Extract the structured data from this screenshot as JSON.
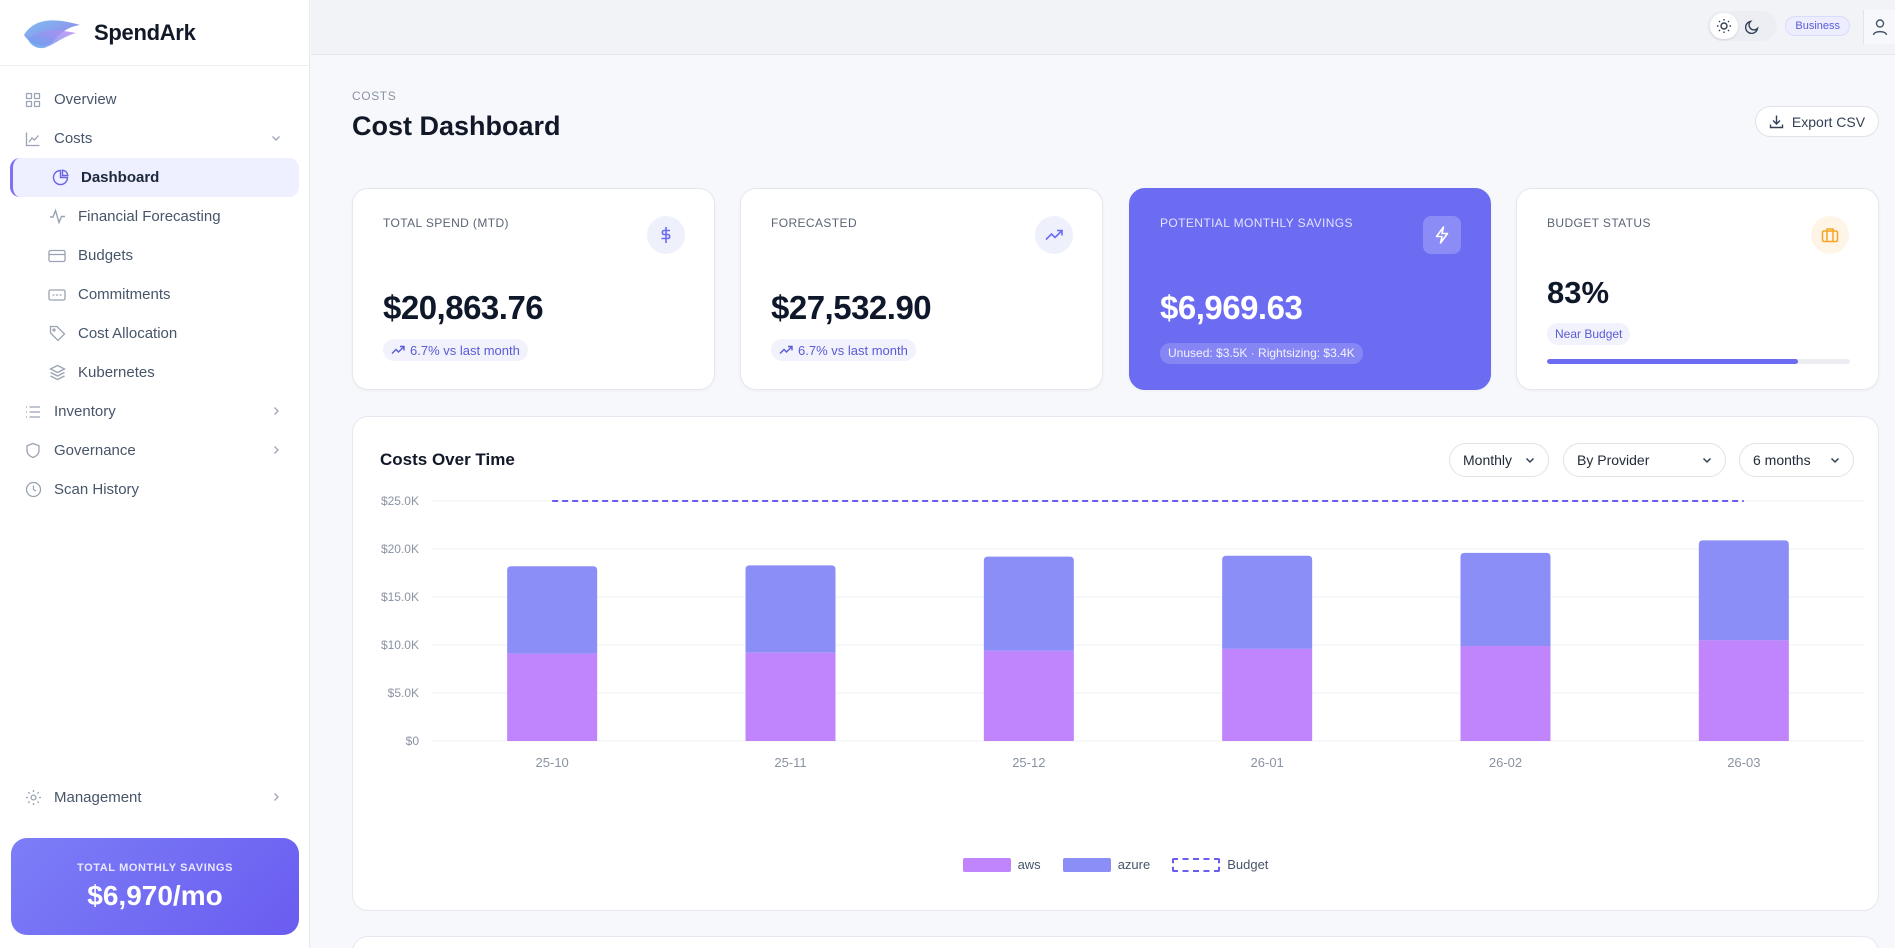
{
  "app": {
    "name": "SpendArk"
  },
  "sidebar": {
    "items": [
      {
        "label": "Overview",
        "icon": "grid-icon"
      },
      {
        "label": "Costs",
        "icon": "chart-line-icon",
        "expanded": true
      },
      {
        "label": "Inventory",
        "icon": "list-icon"
      },
      {
        "label": "Governance",
        "icon": "shield-icon"
      },
      {
        "label": "Scan History",
        "icon": "clock-icon"
      }
    ],
    "sub_items": [
      {
        "label": "Dashboard",
        "icon": "pie-chart-icon",
        "active": true
      },
      {
        "label": "Financial Forecasting",
        "icon": "activity-icon"
      },
      {
        "label": "Budgets",
        "icon": "credit-card-icon"
      },
      {
        "label": "Commitments",
        "icon": "ticket-icon"
      },
      {
        "label": "Cost Allocation",
        "icon": "tag-icon"
      },
      {
        "label": "Kubernetes",
        "icon": "layers-icon"
      }
    ],
    "management": {
      "label": "Management",
      "icon": "gear-icon"
    },
    "savings": {
      "label": "TOTAL MONTHLY SAVINGS",
      "value": "$6,970/mo"
    }
  },
  "topbar": {
    "plan": "Business"
  },
  "header": {
    "breadcrumb": "COSTS",
    "title": "Cost Dashboard",
    "export_label": "Export CSV"
  },
  "kpis": {
    "total_spend": {
      "label": "TOTAL SPEND (MTD)",
      "value": "$20,863.76",
      "trend": "6.7% vs last month",
      "icon": "dollar-icon"
    },
    "forecasted": {
      "label": "FORECASTED",
      "value": "$27,532.90",
      "trend": "6.7% vs last month",
      "icon": "trending-up-icon"
    },
    "savings": {
      "label": "POTENTIAL MONTHLY SAVINGS",
      "value": "$6,969.63",
      "detail": "Unused: $3.5K · Rightsizing: $3.4K",
      "icon": "lightning-icon"
    },
    "budget": {
      "label": "BUDGET STATUS",
      "value": "83%",
      "badge": "Near Budget",
      "progress": 0.83,
      "icon": "briefcase-icon"
    }
  },
  "chart_panel": {
    "title": "Costs Over Time",
    "filters": {
      "granularity": "Monthly",
      "group_by": "By Provider",
      "range": "6 months"
    }
  },
  "colors": {
    "accent": "#6b6cf2",
    "aws": "#c084fc",
    "azure": "#8b8ef7",
    "budget": "#6b5cf0"
  },
  "chart_data": {
    "type": "bar",
    "stacked": true,
    "categories": [
      "25-10",
      "25-11",
      "25-12",
      "26-01",
      "26-02",
      "26-03"
    ],
    "series": [
      {
        "name": "aws",
        "values": [
          9100,
          9200,
          9400,
          9600,
          9900,
          10500
        ]
      },
      {
        "name": "azure",
        "values": [
          9100,
          9100,
          9800,
          9700,
          9700,
          10400
        ]
      }
    ],
    "budget": {
      "name": "Budget",
      "value": 25000
    },
    "ylim": [
      0,
      25000
    ],
    "yticks": [
      0,
      5000,
      10000,
      15000,
      20000,
      25000
    ],
    "ytick_labels": [
      "$0",
      "$5.0K",
      "$10.0K",
      "$15.0K",
      "$20.0K",
      "$25.0K"
    ],
    "legend": [
      "aws",
      "azure",
      "Budget"
    ],
    "grid": true
  }
}
